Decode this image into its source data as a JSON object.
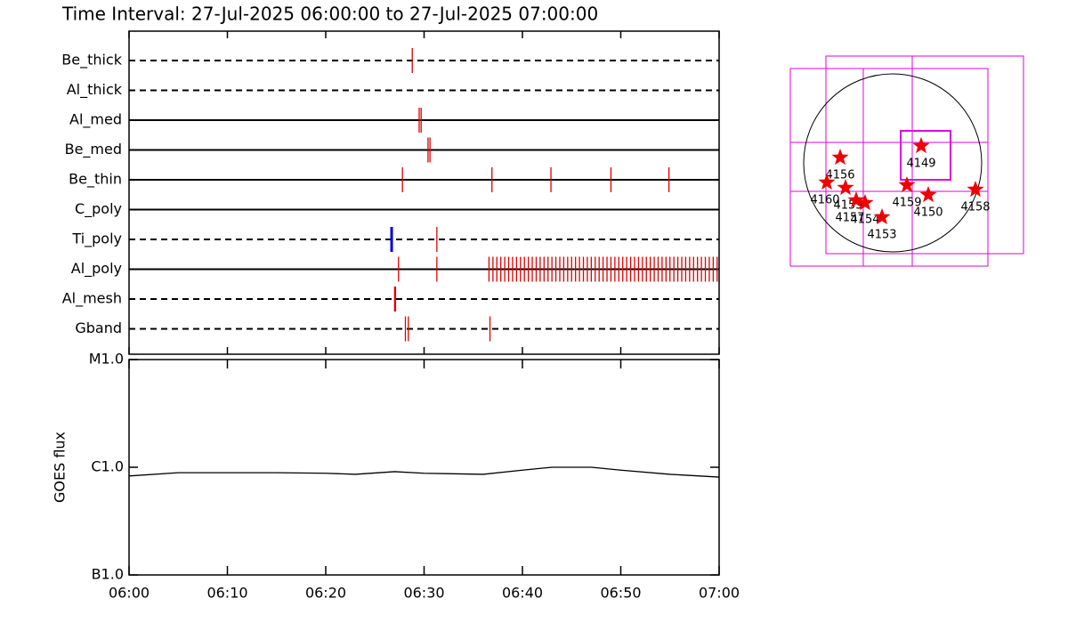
{
  "title": "Time Interval: 27-Jul-2025 06:00:00 to 27-Jul-2025 07:00:00",
  "chart_data": [
    {
      "type": "timeline",
      "categories": [
        "Be_thick",
        "Al_thick",
        "Al_med",
        "Be_med",
        "Be_thin",
        "C_poly",
        "Ti_poly",
        "Al_poly",
        "Al_mesh",
        "Gband"
      ],
      "line_styles": [
        "dashed",
        "dashed",
        "solid",
        "solid",
        "solid",
        "solid",
        "dashed",
        "solid",
        "dashed",
        "dashed"
      ],
      "xlim": [
        0,
        60
      ],
      "series": [
        {
          "color": "#dd0000",
          "x": [
            [
              28.8
            ],
            [],
            [
              29.5,
              29.7
            ],
            [
              30.4,
              30.6
            ],
            [
              27.8,
              36.9,
              42.9,
              49.0,
              54.9
            ],
            [],
            [
              31.3
            ],
            [
              27.4,
              31.3,
              36.6,
              37.0,
              37.4,
              37.8,
              38.2,
              38.6,
              39.0,
              39.4,
              39.8,
              40.2,
              40.6,
              41.0,
              41.4,
              41.8,
              42.2,
              42.6,
              43.0,
              43.4,
              43.8,
              44.2,
              44.6,
              45.0,
              45.4,
              45.8,
              46.2,
              46.6,
              47.0,
              47.4,
              47.8,
              48.2,
              48.6,
              49.0,
              49.4,
              49.8,
              50.2,
              50.6,
              51.0,
              51.4,
              51.8,
              52.2,
              52.6,
              53.0,
              53.4,
              53.8,
              54.2,
              54.6,
              55.0,
              55.4,
              55.8,
              56.2,
              56.6,
              57.0,
              57.4,
              57.8,
              58.2,
              58.6,
              59.0,
              59.4,
              59.8
            ],
            [
              27.0,
              27.1
            ],
            [
              28.1,
              28.4,
              36.7
            ]
          ]
        },
        {
          "color": "#0000dd",
          "x": [
            [],
            [],
            [],
            [],
            [],
            [],
            [
              26.7
            ],
            [],
            [],
            []
          ]
        }
      ]
    },
    {
      "type": "line",
      "y_label": "GOES flux",
      "log_scale": true,
      "color": "#000000",
      "xlim": [
        0,
        60
      ],
      "xticks": [
        {
          "value": 0,
          "label": "06:00"
        },
        {
          "value": 10,
          "label": "06:10"
        },
        {
          "value": 20,
          "label": "06:20"
        },
        {
          "value": 30,
          "label": "06:30"
        },
        {
          "value": 40,
          "label": "06:40"
        },
        {
          "value": 50,
          "label": "06:50"
        },
        {
          "value": 60,
          "label": "07:00"
        }
      ],
      "ylim": [
        1e-07,
        1e-05
      ],
      "yticks": [
        {
          "value": 1e-07,
          "label": "B1.0"
        },
        {
          "value": 1e-06,
          "label": "C1.0"
        },
        {
          "value": 1e-05,
          "label": "M1.0"
        }
      ],
      "x": [
        0,
        5,
        10,
        15,
        20,
        23,
        27,
        30,
        36,
        40,
        43,
        47,
        50,
        55,
        60
      ],
      "values": [
        8.3e-07,
        8.9e-07,
        8.9e-07,
        8.9e-07,
        8.8e-07,
        8.6e-07,
        9.1e-07,
        8.8e-07,
        8.6e-07,
        9.4e-07,
        1e-06,
        1e-06,
        9.4e-07,
        8.6e-07,
        8.1e-07
      ]
    }
  ],
  "map": {
    "labels": [
      "4156",
      "4149",
      "4160",
      "4155",
      "4157",
      "4154",
      "4159",
      "4150",
      "4158",
      "4153"
    ]
  }
}
